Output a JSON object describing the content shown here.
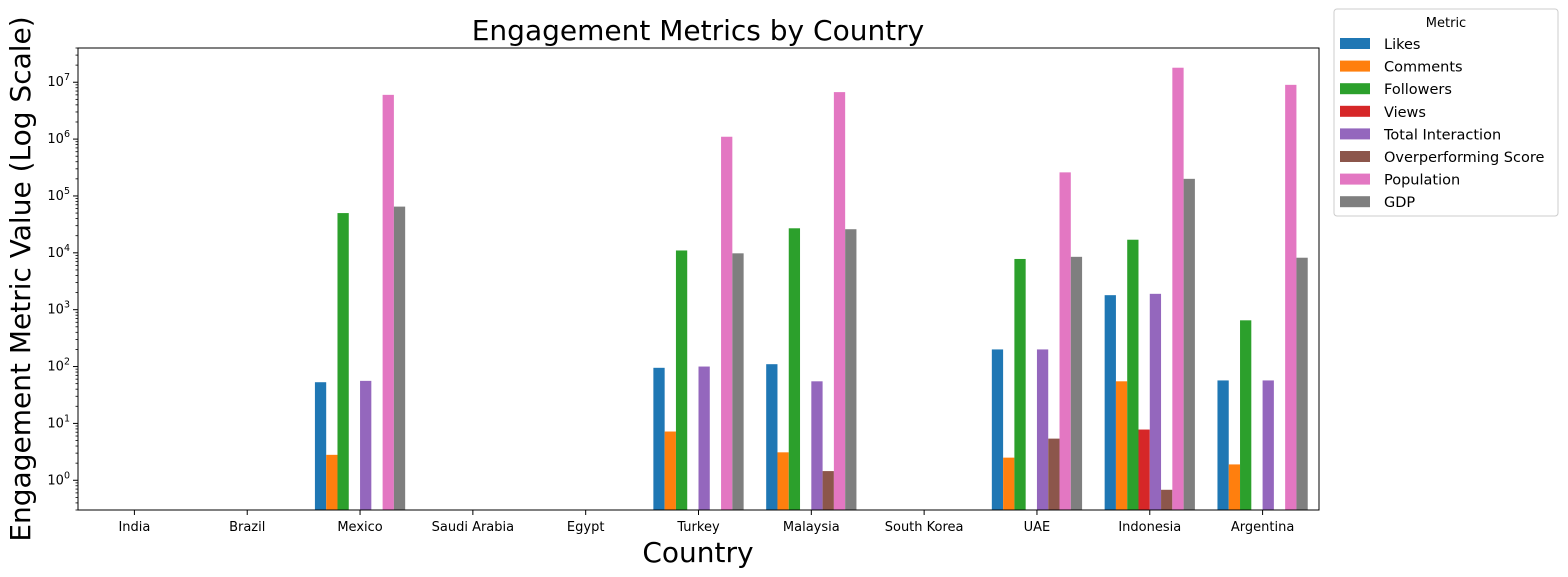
{
  "chart_data": {
    "type": "bar",
    "title": "Engagement Metrics by Country",
    "xlabel": "Country",
    "ylabel": "Engagement Metric Value (Log Scale)",
    "yscale": "log",
    "ylim": [
      0.3,
      40000000
    ],
    "yticks": [
      {
        "value": 1,
        "label": "10^0"
      },
      {
        "value": 10,
        "label": "10^1"
      },
      {
        "value": 100,
        "label": "10^2"
      },
      {
        "value": 1000,
        "label": "10^3"
      },
      {
        "value": 10000,
        "label": "10^4"
      },
      {
        "value": 100000,
        "label": "10^5"
      },
      {
        "value": 1000000,
        "label": "10^6"
      },
      {
        "value": 10000000,
        "label": "10^7"
      }
    ],
    "grid": false,
    "legend": {
      "title": "Metric",
      "placement": "outside right, top"
    },
    "categories": [
      "India",
      "Brazil",
      "Mexico",
      "Saudi Arabia",
      "Egypt",
      "Turkey",
      "Malaysia",
      "South Korea",
      "UAE",
      "Indonesia",
      "Argentina"
    ],
    "series": [
      {
        "name": "Likes",
        "color": "#1f77b4",
        "values": [
          null,
          null,
          53,
          null,
          null,
          95,
          110,
          null,
          200,
          1800,
          57
        ]
      },
      {
        "name": "Comments",
        "color": "#ff7f0e",
        "values": [
          null,
          null,
          2.8,
          null,
          null,
          7.2,
          3.1,
          null,
          2.5,
          55,
          1.9
        ]
      },
      {
        "name": "Followers",
        "color": "#2ca02c",
        "values": [
          null,
          null,
          50000,
          null,
          null,
          11000,
          27000,
          null,
          7800,
          17000,
          650
        ]
      },
      {
        "name": "Views",
        "color": "#d62728",
        "values": [
          null,
          null,
          null,
          null,
          null,
          null,
          null,
          null,
          null,
          7.8,
          null
        ]
      },
      {
        "name": "Total Interaction",
        "color": "#9467bd",
        "values": [
          null,
          null,
          56,
          null,
          null,
          100,
          55,
          null,
          200,
          1900,
          57
        ]
      },
      {
        "name": "Overperforming Score",
        "color": "#8c564b",
        "values": [
          null,
          null,
          null,
          null,
          null,
          null,
          1.45,
          null,
          5.4,
          0.68,
          null
        ]
      },
      {
        "name": "Population",
        "color": "#e377c2",
        "values": [
          null,
          null,
          6000000,
          null,
          null,
          1100000,
          6700000,
          null,
          260000,
          18000000,
          9000000
        ]
      },
      {
        "name": "GDP",
        "color": "#7f7f7f",
        "values": [
          null,
          null,
          65000,
          null,
          null,
          9800,
          26000,
          null,
          8500,
          200000,
          8200
        ]
      }
    ]
  }
}
